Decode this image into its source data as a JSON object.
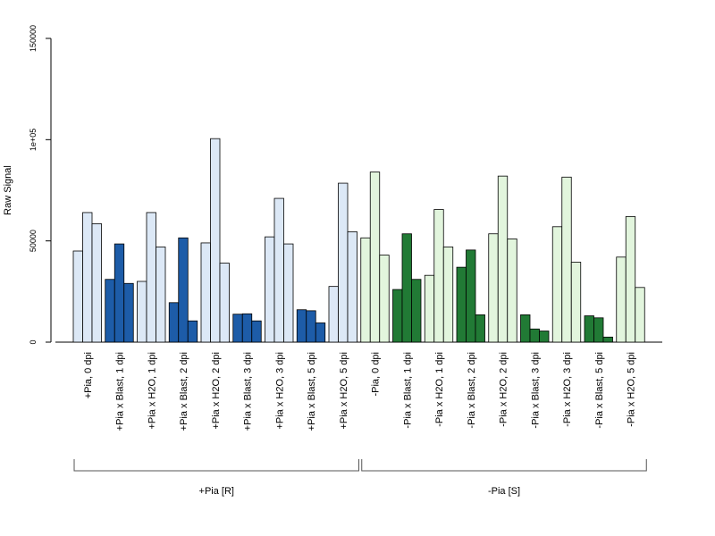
{
  "chart_data": {
    "type": "bar",
    "ylabel": "Raw Signal",
    "ylim": [
      0,
      150000
    ],
    "yticks": [
      {
        "value": 0,
        "label": "0"
      },
      {
        "value": 50000,
        "label": "50000"
      },
      {
        "value": 100000,
        "label": "1e+05"
      },
      {
        "value": 150000,
        "label": "150000"
      }
    ],
    "grid": false,
    "categories": [
      "+Pia, 0 dpi",
      "+Pia x Blast, 1 dpi",
      "+Pia x H2O, 1 dpi",
      "+Pia x Blast, 2 dpi",
      "+Pia x H2O, 2 dpi",
      "+Pia x Blast, 3 dpi",
      "+Pia x H2O, 3 dpi",
      "+Pia x Blast, 5 dpi",
      "+Pia x H2O, 5 dpi",
      "-Pia, 0 dpi",
      "-Pia x Blast, 1 dpi",
      "-Pia x H2O, 1 dpi",
      "-Pia x Blast, 2 dpi",
      "-Pia x H2O, 2 dpi",
      "-Pia x Blast, 3 dpi",
      "-Pia x H2O, 3 dpi",
      "-Pia x Blast, 5 dpi",
      "-Pia x H2O, 5 dpi"
    ],
    "values": [
      [
        45000,
        64000,
        58500
      ],
      [
        31000,
        48500,
        29000
      ],
      [
        30000,
        64000,
        47000
      ],
      [
        19500,
        51500,
        10500
      ],
      [
        49000,
        100500,
        39000
      ],
      [
        13800,
        14000,
        10500
      ],
      [
        52000,
        71000,
        48500
      ],
      [
        16000,
        15500,
        9500
      ],
      [
        27500,
        78500,
        54500
      ],
      [
        51500,
        84000,
        43000
      ],
      [
        26000,
        53500,
        31000
      ],
      [
        33000,
        65500,
        47000
      ],
      [
        37000,
        45500,
        13500
      ],
      [
        53500,
        82000,
        51000
      ],
      [
        13500,
        6500,
        5500
      ],
      [
        57000,
        81500,
        39500
      ],
      [
        13000,
        12000,
        2500
      ],
      [
        42000,
        62000,
        27000
      ]
    ],
    "colors": {
      "plus_light": "#dce8f6",
      "plus_dark": "#1d5ca8",
      "minus_light": "#e2f5dd",
      "minus_dark": "#217a35",
      "border": "#000000"
    },
    "bar_color_key": [
      "plus_light",
      "plus_dark",
      "plus_light",
      "plus_dark",
      "plus_light",
      "plus_dark",
      "plus_light",
      "plus_dark",
      "plus_light",
      "minus_light",
      "minus_dark",
      "minus_light",
      "minus_dark",
      "minus_light",
      "minus_dark",
      "minus_light",
      "minus_dark",
      "minus_light"
    ],
    "groups": [
      {
        "label": "+Pia [R]",
        "from": 0,
        "to": 8
      },
      {
        "label": "-Pia [S]",
        "from": 9,
        "to": 17
      }
    ]
  }
}
